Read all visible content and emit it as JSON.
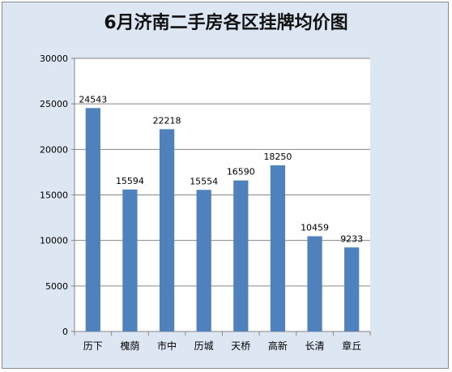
{
  "chart_data": {
    "type": "bar",
    "title": "6月济南二手房各区挂牌均价图",
    "categories": [
      "历下",
      "槐荫",
      "市中",
      "历城",
      "天桥",
      "高新",
      "长清",
      "章丘"
    ],
    "values": [
      24543,
      15594,
      22218,
      15554,
      16590,
      18250,
      10459,
      9233
    ],
    "data_labels": [
      "24543",
      "15594",
      "22218",
      "15554",
      "16590",
      "18250",
      "10459",
      "9233"
    ],
    "ylim": [
      0,
      30000
    ],
    "yticks": [
      "0",
      "5000",
      "10000",
      "15000",
      "20000",
      "25000",
      "30000"
    ],
    "grid": true,
    "legend": "none",
    "bar_color": "#4f81bd",
    "plot_background": "#ffffff",
    "frame_background": "#dde6f3"
  }
}
